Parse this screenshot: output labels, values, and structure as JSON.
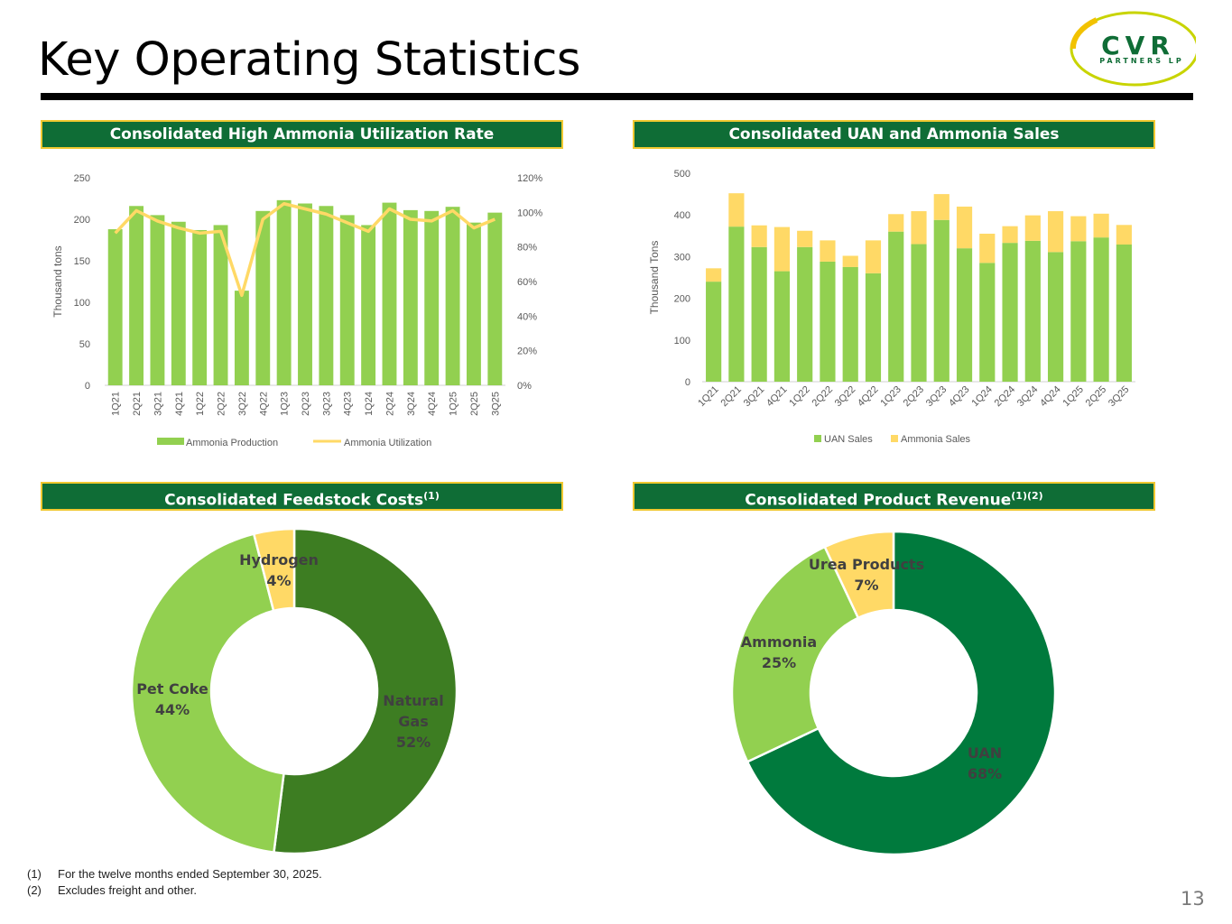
{
  "title": "Key Operating Statistics",
  "logo": {
    "text": "CVR",
    "subtext": "PARTNERS LP"
  },
  "colors": {
    "dark_green": "#3d7d22",
    "mid_green": "#92d050",
    "forest_green": "#007a3d",
    "yellow": "#ffd966",
    "line_yellow": "#ffd966",
    "header_bg": "#0f6d36",
    "header_border": "#f0c830"
  },
  "panels": {
    "utilization": {
      "title": "Consolidated High Ammonia Utilization Rate"
    },
    "sales": {
      "title": "Consolidated UAN and Ammonia Sales"
    },
    "feedstock": {
      "title": "Consolidated Feedstock Costs",
      "sup": "(1)"
    },
    "revenue": {
      "title": "Consolidated Product Revenue",
      "sup": "(1)(2)"
    }
  },
  "chart_data": [
    {
      "type": "bar",
      "categories": [
        "1Q21",
        "2Q21",
        "3Q21",
        "4Q21",
        "1Q22",
        "2Q22",
        "3Q22",
        "4Q22",
        "1Q23",
        "2Q23",
        "3Q23",
        "4Q23",
        "1Q24",
        "2Q24",
        "3Q24",
        "4Q24",
        "1Q25",
        "2Q25",
        "3Q25"
      ],
      "series": [
        {
          "name": "Ammonia Production",
          "type": "bar",
          "axis": "left",
          "values": [
            188,
            216,
            205,
            197,
            187,
            193,
            114,
            210,
            223,
            219,
            216,
            205,
            193,
            220,
            211,
            210,
            215,
            196,
            208
          ]
        },
        {
          "name": "Ammonia Utilization",
          "type": "line",
          "axis": "right",
          "values": [
            88,
            101,
            95,
            91,
            88,
            89,
            52,
            96,
            105,
            102,
            99,
            94,
            89,
            102,
            96,
            95,
            101,
            91,
            96
          ]
        }
      ],
      "ylabel": "Thousand tons",
      "ylim": [
        0,
        250
      ],
      "yticks": [
        "0",
        "50",
        "100",
        "150",
        "200",
        "250"
      ],
      "y2lim": [
        0,
        120
      ],
      "y2ticks": [
        "0%",
        "20%",
        "40%",
        "60%",
        "80%",
        "100%",
        "120%"
      ],
      "legend": "bottom",
      "grid": false
    },
    {
      "type": "bar",
      "stacked": true,
      "categories": [
        "1Q21",
        "2Q21",
        "3Q21",
        "4Q21",
        "1Q22",
        "2Q22",
        "3Q22",
        "4Q22",
        "1Q23",
        "2Q23",
        "3Q23",
        "4Q23",
        "1Q24",
        "2Q24",
        "3Q24",
        "4Q24",
        "1Q25",
        "2Q25",
        "3Q25"
      ],
      "series": [
        {
          "name": "UAN Sales",
          "values": [
            240,
            372,
            323,
            265,
            323,
            288,
            275,
            260,
            360,
            330,
            388,
            320,
            285,
            333,
            338,
            311,
            337,
            346,
            329
          ]
        },
        {
          "name": "Ammonia Sales",
          "values": [
            32,
            80,
            52,
            106,
            39,
            51,
            27,
            79,
            42,
            79,
            62,
            100,
            70,
            40,
            61,
            98,
            60,
            57,
            47
          ]
        }
      ],
      "ylabel": "Thousand Tons",
      "ylim": [
        0,
        500
      ],
      "yticks": [
        "0",
        "100",
        "200",
        "300",
        "400",
        "500"
      ],
      "legend": "bottom",
      "grid": false
    },
    {
      "type": "pie",
      "donut": true,
      "slices": [
        {
          "label": "Natural Gas",
          "value": 52,
          "text": "52%"
        },
        {
          "label": "Pet Coke",
          "value": 44,
          "text": "44%"
        },
        {
          "label": "Hydrogen",
          "value": 4,
          "text": "4%"
        }
      ]
    },
    {
      "type": "pie",
      "donut": true,
      "slices": [
        {
          "label": "UAN",
          "value": 68,
          "text": "68%"
        },
        {
          "label": "Ammonia",
          "value": 25,
          "text": "25%"
        },
        {
          "label": "Urea Products",
          "value": 7,
          "text": "7%"
        }
      ]
    }
  ],
  "footnotes": [
    {
      "num": "(1)",
      "text": "For the twelve months ended September 30, 2025."
    },
    {
      "num": "(2)",
      "text": "Excludes freight and other."
    }
  ],
  "page_number": "13"
}
